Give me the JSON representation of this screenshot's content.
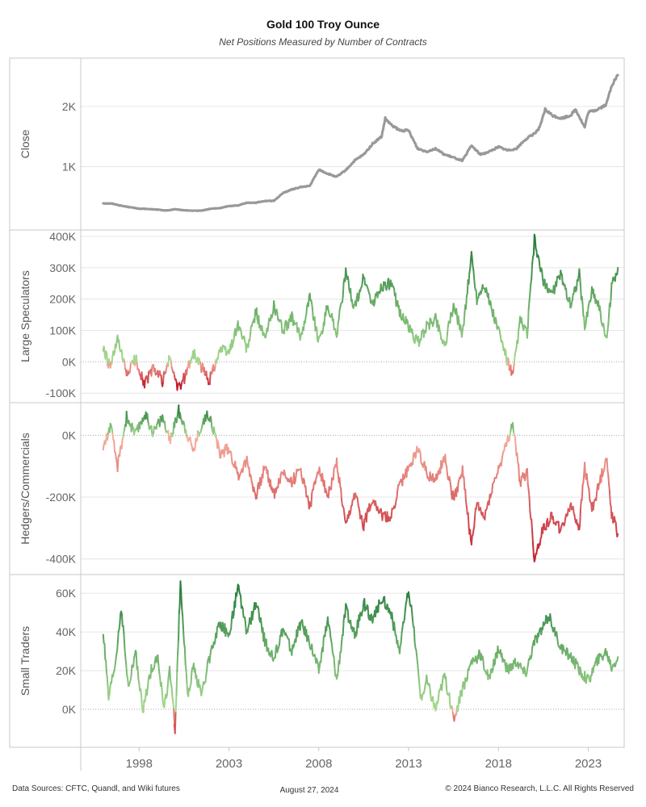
{
  "header": {
    "title": "Gold 100 Troy Ounce",
    "subtitle": "Net Positions Measured by Number of Contracts"
  },
  "footer": {
    "sources": "Data Sources: CFTC, Quandl, and Wiki futures",
    "date": "August 27, 2024",
    "copyright": "© 2024 Bianco Research, L.L.C. All Rights Reserved"
  },
  "colors": {
    "close_line": "#999999",
    "positive_light": "#a6d98f",
    "positive_dark": "#237a3b",
    "negative_light": "#f4b1a0",
    "negative_dark": "#c0182a",
    "grid": "#e6e6e6",
    "border": "#c8c8c8"
  },
  "chart_data": [
    {
      "type": "line",
      "ylabel": "Close",
      "ylim": [
        0,
        2750
      ],
      "yticks": [
        1000,
        2000
      ],
      "ytick_labels": [
        "1K",
        "2K"
      ],
      "zero_line": false,
      "color_mode": "solid",
      "x": [
        1996.0,
        1996.5,
        1997.0,
        1997.5,
        1998.0,
        1998.5,
        1999.0,
        1999.5,
        2000.0,
        2000.5,
        2001.0,
        2001.5,
        2002.0,
        2002.5,
        2003.0,
        2003.5,
        2004.0,
        2004.5,
        2005.0,
        2005.5,
        2006.0,
        2006.5,
        2007.0,
        2007.5,
        2008.0,
        2008.5,
        2009.0,
        2009.5,
        2010.0,
        2010.5,
        2011.0,
        2011.5,
        2011.7,
        2012.0,
        2012.5,
        2013.0,
        2013.5,
        2014.0,
        2014.5,
        2015.0,
        2015.5,
        2016.0,
        2016.5,
        2017.0,
        2017.5,
        2018.0,
        2018.5,
        2019.0,
        2019.5,
        2020.0,
        2020.3,
        2020.6,
        2021.0,
        2021.5,
        2022.0,
        2022.3,
        2022.8,
        2023.0,
        2023.5,
        2024.0,
        2024.3,
        2024.65
      ],
      "series": [
        {
          "values": [
            390,
            385,
            350,
            325,
            300,
            295,
            285,
            270,
            290,
            275,
            265,
            270,
            300,
            310,
            345,
            355,
            400,
            400,
            430,
            430,
            560,
            620,
            660,
            680,
            950,
            880,
            830,
            940,
            1100,
            1200,
            1380,
            1500,
            1800,
            1700,
            1600,
            1600,
            1300,
            1250,
            1300,
            1200,
            1150,
            1100,
            1350,
            1200,
            1250,
            1330,
            1270,
            1300,
            1450,
            1550,
            1650,
            1950,
            1850,
            1800,
            1850,
            1950,
            1650,
            1900,
            1950,
            2030,
            2350,
            2520
          ]
        }
      ]
    },
    {
      "type": "line",
      "ylabel": "Large Speculators",
      "ylim": [
        -120000,
        410000
      ],
      "yticks": [
        -100000,
        0,
        100000,
        200000,
        300000,
        400000
      ],
      "ytick_labels": [
        "-100K",
        "0K",
        "100K",
        "200K",
        "300K",
        "400K"
      ],
      "zero_line": true,
      "color_mode": "diverging",
      "color_range": [
        -80000,
        400000
      ],
      "x": [
        1996.0,
        1996.4,
        1996.8,
        1997.3,
        1997.8,
        1998.3,
        1998.8,
        1999.3,
        1999.7,
        2000.2,
        2000.6,
        2001.0,
        2001.5,
        2001.9,
        2002.5,
        2003.0,
        2003.5,
        2004.0,
        2004.5,
        2005.0,
        2005.5,
        2006.0,
        2006.5,
        2007.0,
        2007.5,
        2008.0,
        2008.5,
        2009.0,
        2009.5,
        2010.0,
        2010.5,
        2011.0,
        2011.5,
        2012.0,
        2012.5,
        2013.0,
        2013.5,
        2014.0,
        2014.5,
        2015.0,
        2015.5,
        2016.0,
        2016.5,
        2016.8,
        2017.2,
        2017.6,
        2018.0,
        2018.4,
        2018.8,
        2019.2,
        2019.6,
        2020.0,
        2020.5,
        2021.0,
        2021.5,
        2022.0,
        2022.5,
        2022.8,
        2023.2,
        2023.6,
        2024.0,
        2024.3,
        2024.65
      ],
      "series": [
        {
          "values": [
            40000,
            -20000,
            70000,
            -40000,
            10000,
            -70000,
            -20000,
            -60000,
            10000,
            -90000,
            -40000,
            30000,
            -20000,
            -60000,
            40000,
            30000,
            120000,
            40000,
            160000,
            70000,
            180000,
            100000,
            140000,
            80000,
            210000,
            60000,
            180000,
            90000,
            280000,
            170000,
            270000,
            180000,
            240000,
            250000,
            160000,
            110000,
            60000,
            110000,
            140000,
            50000,
            180000,
            90000,
            340000,
            200000,
            250000,
            170000,
            100000,
            20000,
            -50000,
            130000,
            90000,
            390000,
            250000,
            220000,
            280000,
            180000,
            280000,
            110000,
            230000,
            180000,
            60000,
            240000,
            300000
          ]
        }
      ]
    },
    {
      "type": "line",
      "ylabel": "Hedgers/Commercials",
      "ylim": [
        -440000,
        95000
      ],
      "yticks": [
        -400000,
        -200000,
        0
      ],
      "ytick_labels": [
        "-400K",
        "-200K",
        "0K"
      ],
      "zero_line": true,
      "color_mode": "diverging",
      "color_range": [
        -420000,
        90000
      ],
      "x": [
        1996.0,
        1996.4,
        1996.8,
        1997.3,
        1997.8,
        1998.3,
        1998.8,
        1999.3,
        1999.7,
        2000.2,
        2000.6,
        2001.0,
        2001.5,
        2001.9,
        2002.5,
        2003.0,
        2003.5,
        2004.0,
        2004.5,
        2005.0,
        2005.5,
        2006.0,
        2006.5,
        2007.0,
        2007.5,
        2008.0,
        2008.5,
        2009.0,
        2009.5,
        2010.0,
        2010.5,
        2011.0,
        2011.5,
        2012.0,
        2012.5,
        2013.0,
        2013.5,
        2014.0,
        2014.5,
        2015.0,
        2015.5,
        2016.0,
        2016.5,
        2016.8,
        2017.2,
        2017.6,
        2018.0,
        2018.4,
        2018.8,
        2019.2,
        2019.6,
        2020.0,
        2020.5,
        2021.0,
        2021.5,
        2022.0,
        2022.5,
        2022.8,
        2023.2,
        2023.6,
        2024.0,
        2024.3,
        2024.65
      ],
      "series": [
        {
          "values": [
            -40000,
            30000,
            -100000,
            60000,
            0,
            70000,
            10000,
            60000,
            -20000,
            80000,
            20000,
            -50000,
            40000,
            70000,
            -60000,
            -40000,
            -130000,
            -80000,
            -200000,
            -100000,
            -190000,
            -120000,
            -150000,
            -110000,
            -230000,
            -100000,
            -200000,
            -90000,
            -300000,
            -190000,
            -290000,
            -200000,
            -260000,
            -270000,
            -160000,
            -110000,
            -40000,
            -120000,
            -150000,
            -70000,
            -210000,
            -110000,
            -360000,
            -220000,
            -270000,
            -180000,
            -110000,
            -40000,
            40000,
            -150000,
            -120000,
            -400000,
            -300000,
            -260000,
            -310000,
            -220000,
            -300000,
            -100000,
            -240000,
            -160000,
            -70000,
            -250000,
            -320000
          ]
        }
      ]
    },
    {
      "type": "line",
      "ylabel": "Small Traders",
      "ylim": [
        -18000,
        68000
      ],
      "yticks": [
        0,
        20000,
        40000,
        60000
      ],
      "ytick_labels": [
        "0K",
        "20K",
        "40K",
        "60K"
      ],
      "zero_line": true,
      "color_mode": "diverging",
      "color_range": [
        -12000,
        66000
      ],
      "x": [
        1996.0,
        1996.3,
        1996.7,
        1997.0,
        1997.4,
        1997.8,
        1998.2,
        1998.6,
        1999.0,
        1999.4,
        1999.7,
        2000.0,
        2000.3,
        2000.7,
        2001.0,
        2001.5,
        2002.0,
        2002.5,
        2003.0,
        2003.5,
        2004.0,
        2004.5,
        2005.0,
        2005.5,
        2006.0,
        2006.5,
        2007.0,
        2007.5,
        2008.0,
        2008.5,
        2009.0,
        2009.5,
        2010.0,
        2010.5,
        2011.0,
        2011.5,
        2012.0,
        2012.5,
        2013.0,
        2013.3,
        2013.7,
        2014.0,
        2014.5,
        2015.0,
        2015.5,
        2016.0,
        2016.5,
        2017.0,
        2017.5,
        2018.0,
        2018.5,
        2019.0,
        2019.5,
        2020.0,
        2020.5,
        2020.8,
        2021.2,
        2021.6,
        2022.0,
        2022.5,
        2023.0,
        2023.5,
        2024.0,
        2024.3,
        2024.65
      ],
      "series": [
        {
          "values": [
            40000,
            5000,
            25000,
            53000,
            10000,
            30000,
            -2000,
            18000,
            28000,
            0,
            20000,
            -10000,
            66000,
            5000,
            22000,
            8000,
            30000,
            45000,
            38000,
            63000,
            40000,
            55000,
            35000,
            25000,
            42000,
            30000,
            45000,
            35000,
            20000,
            47000,
            15000,
            52000,
            38000,
            55000,
            45000,
            58000,
            50000,
            30000,
            62000,
            40000,
            5000,
            15000,
            0,
            18000,
            -5000,
            10000,
            25000,
            28000,
            15000,
            32000,
            20000,
            25000,
            18000,
            35000,
            42000,
            49000,
            38000,
            30000,
            28000,
            20000,
            15000,
            25000,
            30000,
            22000,
            27000
          ]
        }
      ]
    }
  ],
  "xaxis": {
    "xlim": [
      1994.75,
      2025.0
    ],
    "ticks": [
      1998,
      2003,
      2008,
      2013,
      2018,
      2023
    ],
    "tick_labels": [
      "1998",
      "2003",
      "2008",
      "2013",
      "2018",
      "2023"
    ]
  }
}
